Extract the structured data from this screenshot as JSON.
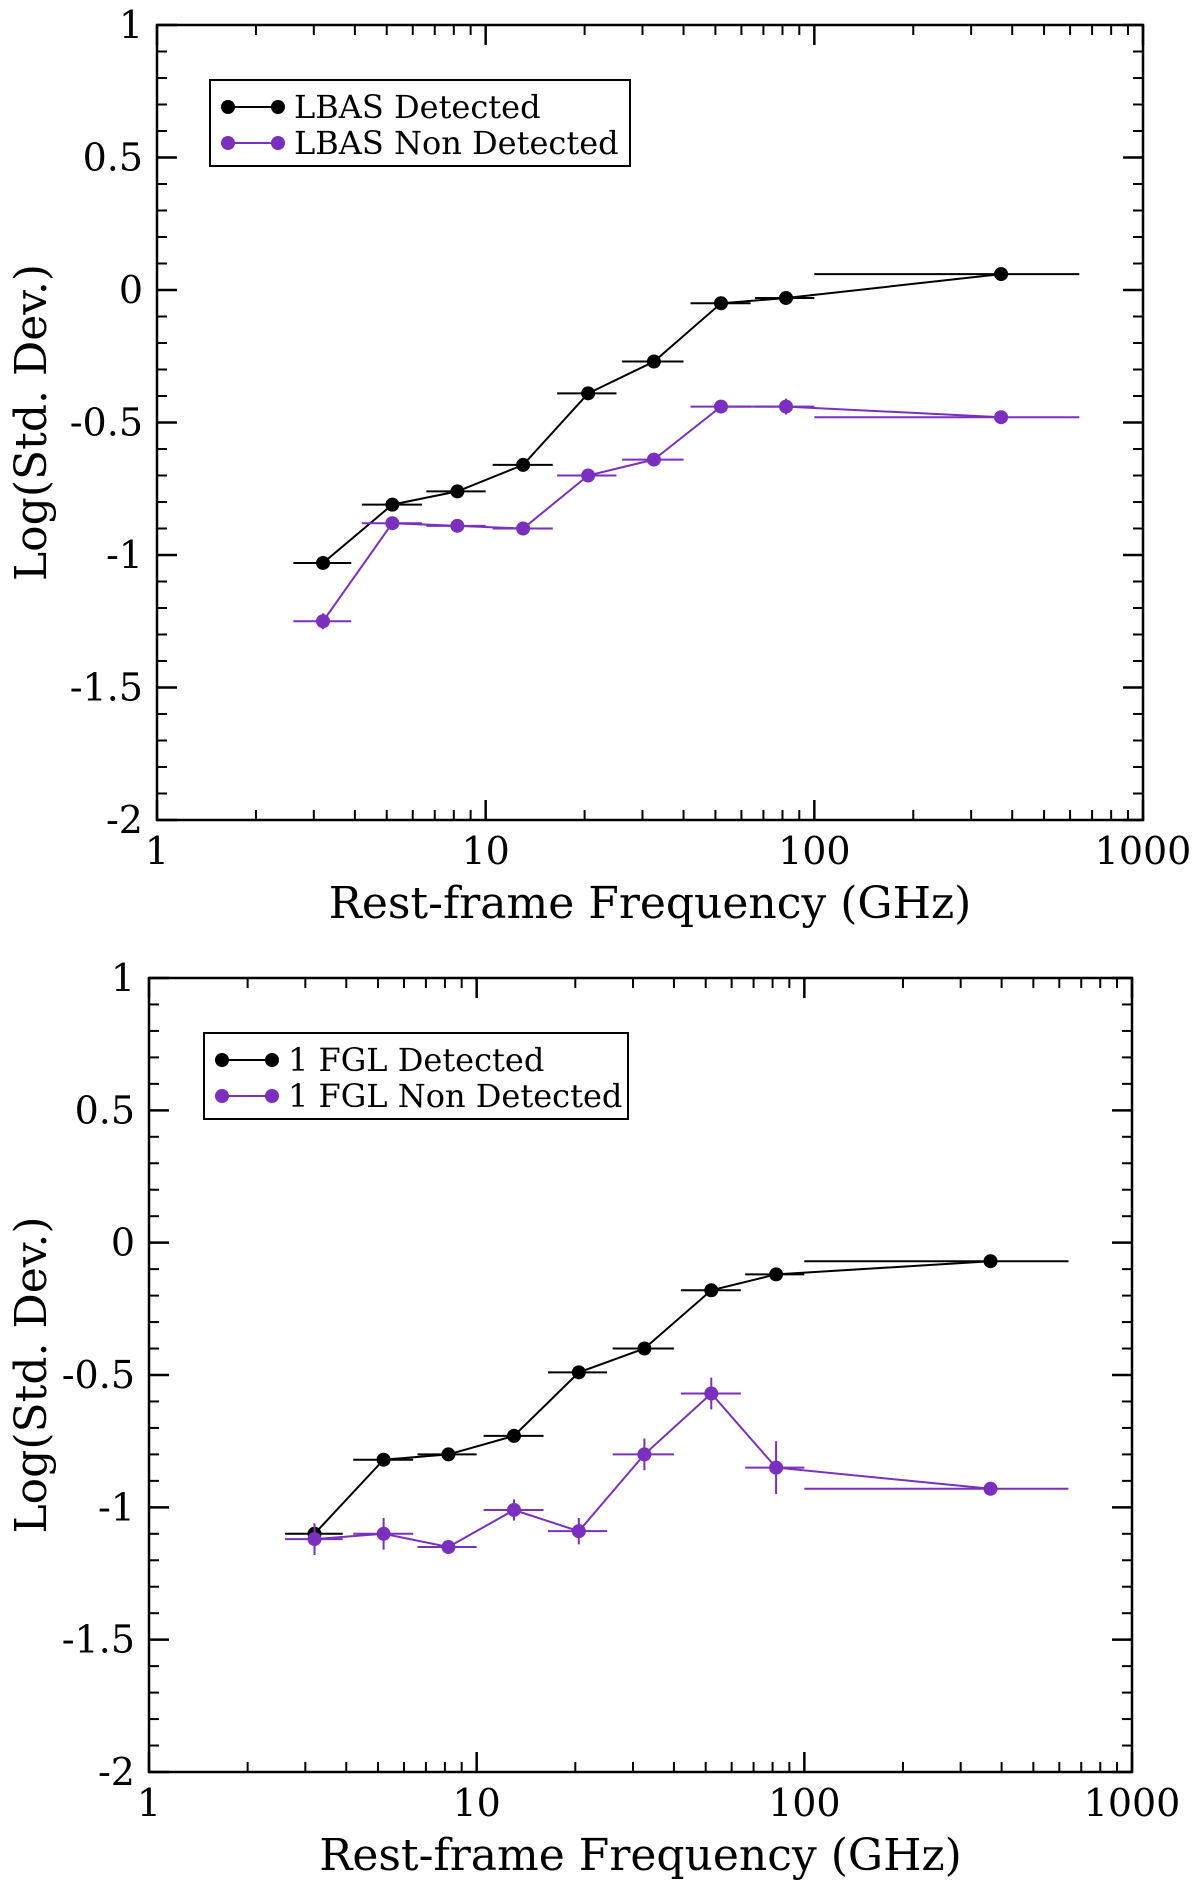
{
  "chart_data": [
    {
      "type": "line",
      "title": "",
      "xlabel": "Rest-frame Frequency (GHz)",
      "ylabel": "Log(Std. Dev.)",
      "xscale": "log",
      "xlim": [
        1,
        1000
      ],
      "ylim": [
        -2,
        1
      ],
      "xticks": [
        1,
        10,
        100,
        1000
      ],
      "xtick_labels": [
        "1",
        "10",
        "100",
        "1000"
      ],
      "yticks": [
        -2,
        -1.5,
        -1,
        -0.5,
        0,
        0.5,
        1
      ],
      "ytick_labels": [
        "-2",
        "-1.5",
        "-1",
        "-0.5",
        "0",
        "0.5",
        "1"
      ],
      "legend_position": "top-left",
      "series": [
        {
          "name": "LBAS Detected",
          "color": "#000000",
          "points": [
            {
              "x": 3.2,
              "y": -1.03,
              "xlo": 2.6,
              "xhi": 3.9,
              "ylo": -1.03,
              "yhi": -1.03
            },
            {
              "x": 5.2,
              "y": -0.81,
              "xlo": 4.2,
              "xhi": 6.4,
              "ylo": -0.81,
              "yhi": -0.81
            },
            {
              "x": 8.2,
              "y": -0.76,
              "xlo": 6.6,
              "xhi": 10.0,
              "ylo": -0.76,
              "yhi": -0.76
            },
            {
              "x": 13.0,
              "y": -0.66,
              "xlo": 10.5,
              "xhi": 16.0,
              "ylo": -0.66,
              "yhi": -0.66
            },
            {
              "x": 20.5,
              "y": -0.39,
              "xlo": 16.5,
              "xhi": 25.0,
              "ylo": -0.39,
              "yhi": -0.39
            },
            {
              "x": 32.5,
              "y": -0.27,
              "xlo": 26.0,
              "xhi": 40.0,
              "ylo": -0.27,
              "yhi": -0.27
            },
            {
              "x": 52.0,
              "y": -0.05,
              "xlo": 42.0,
              "xhi": 64.0,
              "ylo": -0.05,
              "yhi": -0.05
            },
            {
              "x": 82.0,
              "y": -0.03,
              "xlo": 66.0,
              "xhi": 100.0,
              "ylo": -0.03,
              "yhi": -0.03
            },
            {
              "x": 370.0,
              "y": 0.06,
              "xlo": 100.0,
              "xhi": 640.0,
              "ylo": 0.06,
              "yhi": 0.06
            }
          ]
        },
        {
          "name": "LBAS Non Detected",
          "color": "#7b2fbe",
          "points": [
            {
              "x": 3.2,
              "y": -1.25,
              "xlo": 2.6,
              "xhi": 3.9,
              "ylo": -1.28,
              "yhi": -1.22
            },
            {
              "x": 5.2,
              "y": -0.88,
              "xlo": 4.2,
              "xhi": 6.4,
              "ylo": -0.9,
              "yhi": -0.86
            },
            {
              "x": 8.2,
              "y": -0.89,
              "xlo": 6.6,
              "xhi": 10.0,
              "ylo": -0.91,
              "yhi": -0.87
            },
            {
              "x": 13.0,
              "y": -0.9,
              "xlo": 10.5,
              "xhi": 16.0,
              "ylo": -0.92,
              "yhi": -0.88
            },
            {
              "x": 20.5,
              "y": -0.7,
              "xlo": 16.5,
              "xhi": 25.0,
              "ylo": -0.72,
              "yhi": -0.68
            },
            {
              "x": 32.5,
              "y": -0.64,
              "xlo": 26.0,
              "xhi": 40.0,
              "ylo": -0.66,
              "yhi": -0.62
            },
            {
              "x": 52.0,
              "y": -0.44,
              "xlo": 42.0,
              "xhi": 64.0,
              "ylo": -0.46,
              "yhi": -0.42
            },
            {
              "x": 82.0,
              "y": -0.44,
              "xlo": 66.0,
              "xhi": 100.0,
              "ylo": -0.47,
              "yhi": -0.41
            },
            {
              "x": 370.0,
              "y": -0.48,
              "xlo": 100.0,
              "xhi": 640.0,
              "ylo": -0.49,
              "yhi": -0.47
            }
          ]
        }
      ]
    },
    {
      "type": "line",
      "title": "",
      "xlabel": "Rest-frame Frequency (GHz)",
      "ylabel": "Log(Std. Dev.)",
      "xscale": "log",
      "xlim": [
        1,
        1000
      ],
      "ylim": [
        -2,
        1
      ],
      "xticks": [
        1,
        10,
        100,
        1000
      ],
      "xtick_labels": [
        "1",
        "10",
        "100",
        "1000"
      ],
      "yticks": [
        -2,
        -1.5,
        -1,
        -0.5,
        0,
        0.5,
        1
      ],
      "ytick_labels": [
        "-2",
        "-1.5",
        "-1",
        "-0.5",
        "0",
        "0.5",
        "1"
      ],
      "legend_position": "top-left",
      "series": [
        {
          "name": "1 FGL Detected",
          "color": "#000000",
          "points": [
            {
              "x": 3.2,
              "y": -1.1,
              "xlo": 2.6,
              "xhi": 3.9,
              "ylo": -1.1,
              "yhi": -1.1
            },
            {
              "x": 5.2,
              "y": -0.82,
              "xlo": 4.2,
              "xhi": 6.4,
              "ylo": -0.82,
              "yhi": -0.82
            },
            {
              "x": 8.2,
              "y": -0.8,
              "xlo": 6.6,
              "xhi": 10.0,
              "ylo": -0.8,
              "yhi": -0.8
            },
            {
              "x": 13.0,
              "y": -0.73,
              "xlo": 10.5,
              "xhi": 16.0,
              "ylo": -0.73,
              "yhi": -0.73
            },
            {
              "x": 20.5,
              "y": -0.49,
              "xlo": 16.5,
              "xhi": 25.0,
              "ylo": -0.49,
              "yhi": -0.49
            },
            {
              "x": 32.5,
              "y": -0.4,
              "xlo": 26.0,
              "xhi": 40.0,
              "ylo": -0.4,
              "yhi": -0.4
            },
            {
              "x": 52.0,
              "y": -0.18,
              "xlo": 42.0,
              "xhi": 64.0,
              "ylo": -0.18,
              "yhi": -0.18
            },
            {
              "x": 82.0,
              "y": -0.12,
              "xlo": 66.0,
              "xhi": 100.0,
              "ylo": -0.12,
              "yhi": -0.12
            },
            {
              "x": 370.0,
              "y": -0.07,
              "xlo": 100.0,
              "xhi": 640.0,
              "ylo": -0.07,
              "yhi": -0.07
            }
          ]
        },
        {
          "name": "1 FGL Non Detected",
          "color": "#7b2fbe",
          "points": [
            {
              "x": 3.2,
              "y": -1.12,
              "xlo": 2.6,
              "xhi": 3.9,
              "ylo": -1.18,
              "yhi": -1.06
            },
            {
              "x": 5.2,
              "y": -1.1,
              "xlo": 4.2,
              "xhi": 6.4,
              "ylo": -1.16,
              "yhi": -1.04
            },
            {
              "x": 8.2,
              "y": -1.15,
              "xlo": 6.6,
              "xhi": 10.0,
              "ylo": -1.17,
              "yhi": -1.13
            },
            {
              "x": 13.0,
              "y": -1.01,
              "xlo": 10.5,
              "xhi": 16.0,
              "ylo": -1.05,
              "yhi": -0.97
            },
            {
              "x": 20.5,
              "y": -1.09,
              "xlo": 16.5,
              "xhi": 25.0,
              "ylo": -1.14,
              "yhi": -1.04
            },
            {
              "x": 32.5,
              "y": -0.8,
              "xlo": 26.0,
              "xhi": 40.0,
              "ylo": -0.86,
              "yhi": -0.74
            },
            {
              "x": 52.0,
              "y": -0.57,
              "xlo": 42.0,
              "xhi": 64.0,
              "ylo": -0.63,
              "yhi": -0.51
            },
            {
              "x": 82.0,
              "y": -0.85,
              "xlo": 66.0,
              "xhi": 100.0,
              "ylo": -0.95,
              "yhi": -0.75
            },
            {
              "x": 370.0,
              "y": -0.93,
              "xlo": 100.0,
              "xhi": 640.0,
              "ylo": -0.94,
              "yhi": -0.92
            }
          ]
        }
      ]
    }
  ]
}
